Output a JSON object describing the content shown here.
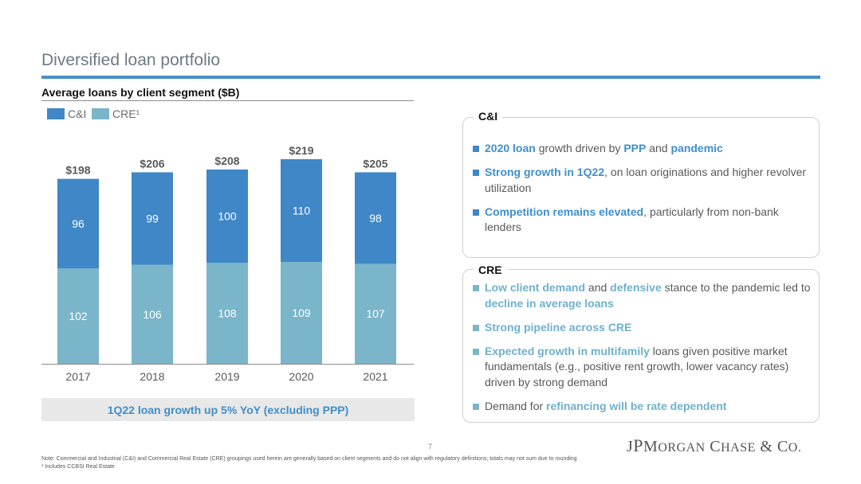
{
  "page": {
    "title": "Diversified loan portfolio",
    "page_number": "7",
    "logo_text": "JPMorgan Chase & Co.",
    "footnotes": [
      "Note: Commercial and Industrial (C&I) and Commercial Real Estate (CRE) groupings used herein are generally based on client segments and do not align with regulatory definitions; totals may not sum due to rounding",
      "¹ Includes CCBSI Real Estate"
    ]
  },
  "colors": {
    "ci": "#3f87c6",
    "cre": "#7ab5c9",
    "accent_rule": "#4a8fc7",
    "ci_text": "#3f8fcb",
    "cre_text": "#6fb0cc"
  },
  "chart_data": {
    "type": "bar",
    "stacked": true,
    "title": "Average loans by client segment ($B)",
    "categories": [
      "2017",
      "2018",
      "2019",
      "2020",
      "2021"
    ],
    "series": [
      {
        "name": "CRE¹",
        "values": [
          102,
          106,
          108,
          109,
          107
        ]
      },
      {
        "name": "C&I",
        "values": [
          96,
          99,
          100,
          110,
          98
        ]
      }
    ],
    "totals": [
      "$198",
      "$206",
      "$208",
      "$219",
      "$205"
    ],
    "legend": "top-left",
    "ylim": [
      0,
      219
    ],
    "grid": false
  },
  "callout": "1Q22 loan growth up 5% YoY (excluding PPP)",
  "panels": {
    "ci": {
      "label": "C&I",
      "bullets": [
        [
          {
            "t": "2020 loan",
            "h": true
          },
          {
            "t": " growth driven by "
          },
          {
            "t": "PPP",
            "h": true
          },
          {
            "t": " and "
          },
          {
            "t": "pandemic",
            "h": true
          }
        ],
        [
          {
            "t": "Strong growth in 1Q22",
            "h": true
          },
          {
            "t": ", on loan originations and higher revolver utilization"
          }
        ],
        [
          {
            "t": "Competition remains elevated",
            "h": true
          },
          {
            "t": ", particularly from non-bank lenders"
          }
        ]
      ]
    },
    "cre": {
      "label": "CRE",
      "bullets": [
        [
          {
            "t": "Low client demand",
            "h": true
          },
          {
            "t": " and "
          },
          {
            "t": "defensive",
            "h": true
          },
          {
            "t": " stance to the pandemic led to "
          },
          {
            "t": "decline in average loans",
            "h": true
          }
        ],
        [
          {
            "t": "Strong pipeline across CRE",
            "h": true
          }
        ],
        [
          {
            "t": "Expected growth in multifamily",
            "h": true
          },
          {
            "t": " loans given positive market fundamentals (e.g., positive rent growth, lower vacancy rates) driven by strong demand"
          }
        ],
        [
          {
            "t": "Demand for "
          },
          {
            "t": "refinancing will be rate dependent",
            "h": true
          }
        ]
      ]
    }
  }
}
